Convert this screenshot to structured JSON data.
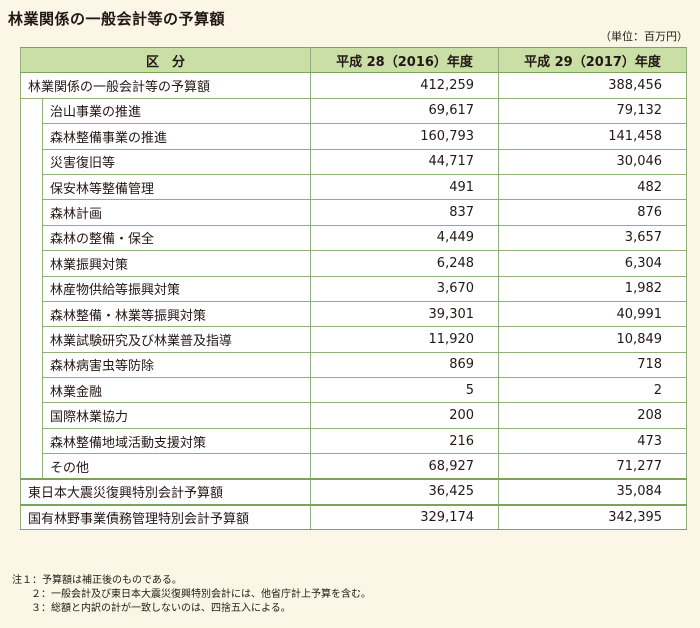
{
  "title": "林業関係の一般会計等の予算額",
  "unit": "（単位：百万円）",
  "table": {
    "headers": [
      "区　分",
      "平成 28（2016）年度",
      "平成 29（2017）年度"
    ],
    "total": {
      "label": "林業関係の一般会計等の予算額",
      "v2016": "412,259",
      "v2017": "388,456"
    },
    "items": [
      {
        "label": "治山事業の推進",
        "v2016": "69,617",
        "v2017": "79,132"
      },
      {
        "label": "森林整備事業の推進",
        "v2016": "160,793",
        "v2017": "141,458"
      },
      {
        "label": "災害復旧等",
        "v2016": "44,717",
        "v2017": "30,046"
      },
      {
        "label": "保安林等整備管理",
        "v2016": "491",
        "v2017": "482"
      },
      {
        "label": "森林計画",
        "v2016": "837",
        "v2017": "876"
      },
      {
        "label": "森林の整備・保全",
        "v2016": "4,449",
        "v2017": "3,657"
      },
      {
        "label": "林業振興対策",
        "v2016": "6,248",
        "v2017": "6,304"
      },
      {
        "label": "林産物供給等振興対策",
        "v2016": "3,670",
        "v2017": "1,982"
      },
      {
        "label": "森林整備・林業等振興対策",
        "v2016": "39,301",
        "v2017": "40,991"
      },
      {
        "label": "林業試験研究及び林業普及指導",
        "v2016": "11,920",
        "v2017": "10,849"
      },
      {
        "label": "森林病害虫等防除",
        "v2016": "869",
        "v2017": "718"
      },
      {
        "label": "林業金融",
        "v2016": "5",
        "v2017": "2"
      },
      {
        "label": "国際林業協力",
        "v2016": "200",
        "v2017": "208"
      },
      {
        "label": "森林整備地域活動支援対策",
        "v2016": "216",
        "v2017": "473"
      },
      {
        "label": "その他",
        "v2016": "68,927",
        "v2017": "71,277"
      }
    ],
    "special": [
      {
        "label": "東日本大震災復興特別会計予算額",
        "v2016": "36,425",
        "v2017": "35,084"
      },
      {
        "label": "国有林野事業債務管理特別会計予算額",
        "v2016": "329,174",
        "v2017": "342,395"
      }
    ]
  },
  "notes": [
    "注１：予算額は補正後のものである。",
    "２：一般会計及び東日本大震災復興特別会計には、他省庁計上予算を含む。",
    "３：総額と内訳の計が一致しないのは、四捨五入による。"
  ]
}
